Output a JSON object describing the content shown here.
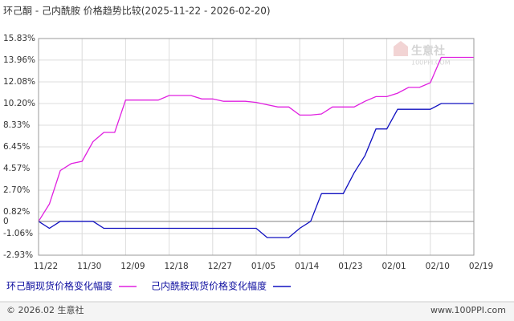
{
  "chart_data": {
    "type": "line",
    "title": "环己酮 - 己内酰胺 价格趋势比较(2025-11-22 - 2026-02-20)",
    "categories": [
      "11/22",
      null,
      null,
      null,
      "11/30",
      null,
      null,
      null,
      "12/09",
      null,
      null,
      null,
      "12/18",
      null,
      null,
      null,
      "12/27",
      null,
      null,
      null,
      "01/05",
      null,
      null,
      null,
      "01/14",
      null,
      null,
      null,
      "01/23",
      null,
      null,
      null,
      "02/01",
      null,
      null,
      null,
      "02/10",
      null,
      null,
      null,
      "02/19"
    ],
    "series": [
      {
        "name": "环己酮现货价格变化幅度",
        "color": "#e020e0",
        "values": [
          0,
          1.5,
          4.4,
          5.0,
          5.2,
          6.9,
          7.7,
          7.7,
          10.5,
          10.5,
          10.5,
          10.5,
          10.9,
          10.9,
          10.9,
          10.6,
          10.6,
          10.4,
          10.4,
          10.4,
          10.3,
          10.1,
          9.9,
          9.9,
          9.2,
          9.2,
          9.3,
          9.9,
          9.9,
          9.9,
          10.4,
          10.8,
          10.8,
          11.1,
          11.6,
          11.6,
          12.0,
          14.2,
          14.2,
          14.2,
          14.2
        ]
      },
      {
        "name": "己内酰胺现货价格变化幅度",
        "color": "#1010c0",
        "values": [
          0,
          -0.6,
          0,
          0,
          0,
          0,
          -0.6,
          -0.6,
          -0.6,
          -0.6,
          -0.6,
          -0.6,
          -0.6,
          -0.6,
          -0.6,
          -0.6,
          -0.6,
          -0.6,
          -0.6,
          -0.6,
          -0.6,
          -1.4,
          -1.4,
          -1.4,
          -0.6,
          0,
          2.4,
          2.4,
          2.4,
          4.2,
          5.7,
          8.0,
          8.0,
          9.7,
          9.7,
          9.7,
          9.7,
          10.2,
          10.2,
          10.2,
          10.2
        ]
      }
    ],
    "ylim": [
      -2.93,
      15.83
    ],
    "yticks": [
      {
        "value": 15.83,
        "label": "15.83%"
      },
      {
        "value": 13.96,
        "label": "13.96%"
      },
      {
        "value": 12.08,
        "label": "12.08%"
      },
      {
        "value": 10.2,
        "label": "10.20%"
      },
      {
        "value": 8.33,
        "label": "8.33%"
      },
      {
        "value": 6.45,
        "label": "6.45%"
      },
      {
        "value": 4.57,
        "label": "4.57%"
      },
      {
        "value": 2.7,
        "label": "2.70%"
      },
      {
        "value": 0.82,
        "label": "0.82%"
      },
      0,
      {
        "value": -1.06,
        "label": "-1.06%"
      },
      {
        "value": -2.93,
        "label": "-2.93%"
      }
    ],
    "grid": true
  },
  "watermark": {
    "name": "生意社",
    "site": "100PPI.COM"
  },
  "footer": {
    "copyright": "© 2026.02 生意社",
    "site": "www.100PPI.com"
  }
}
